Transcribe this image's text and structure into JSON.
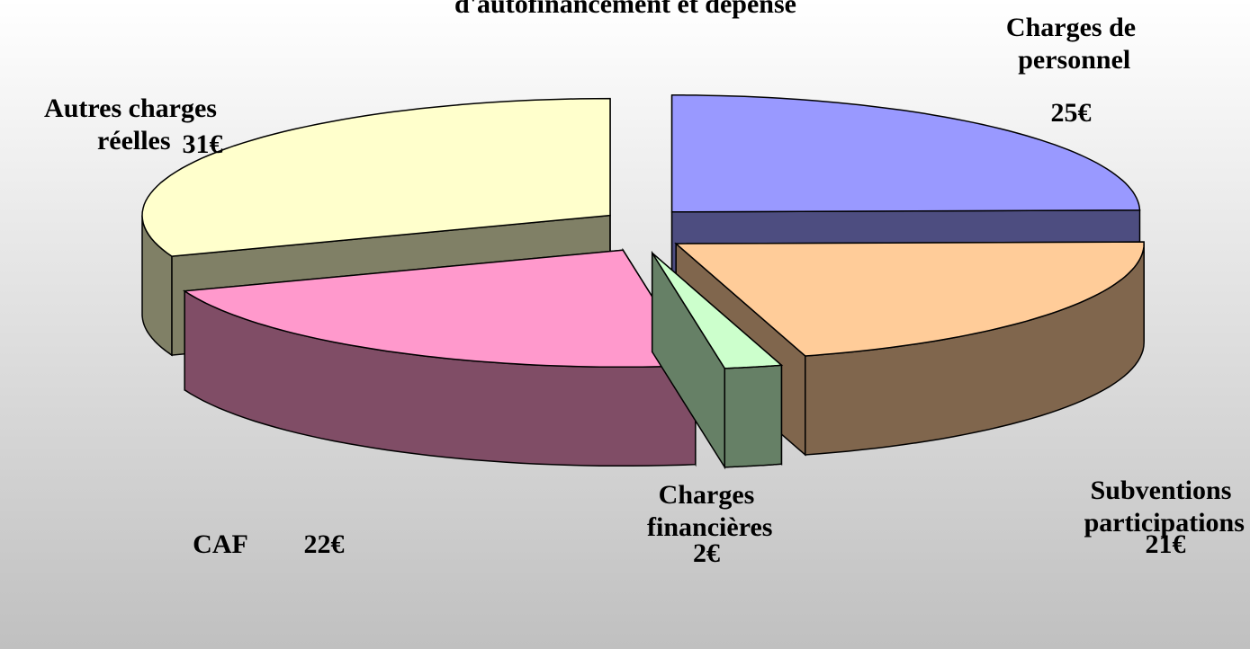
{
  "chart_data": {
    "type": "pie",
    "title": "d'autofinancement  et dépense",
    "categories": [
      "Charges de personnel",
      "Subventions participations",
      "Charges financières",
      "CAF",
      "Autres charges réelles"
    ],
    "values": [
      25,
      21,
      2,
      22,
      31
    ],
    "value_labels": [
      "25€",
      "21€",
      "2€",
      "22€",
      "31€"
    ],
    "colors": [
      "#9999ff",
      "#ffcc99",
      "#ccffcc",
      "#ff99cc",
      "#ffffcc"
    ],
    "side_colors": [
      "#4d4d80",
      "#80664d",
      "#668066",
      "#804d66",
      "#808066"
    ]
  }
}
